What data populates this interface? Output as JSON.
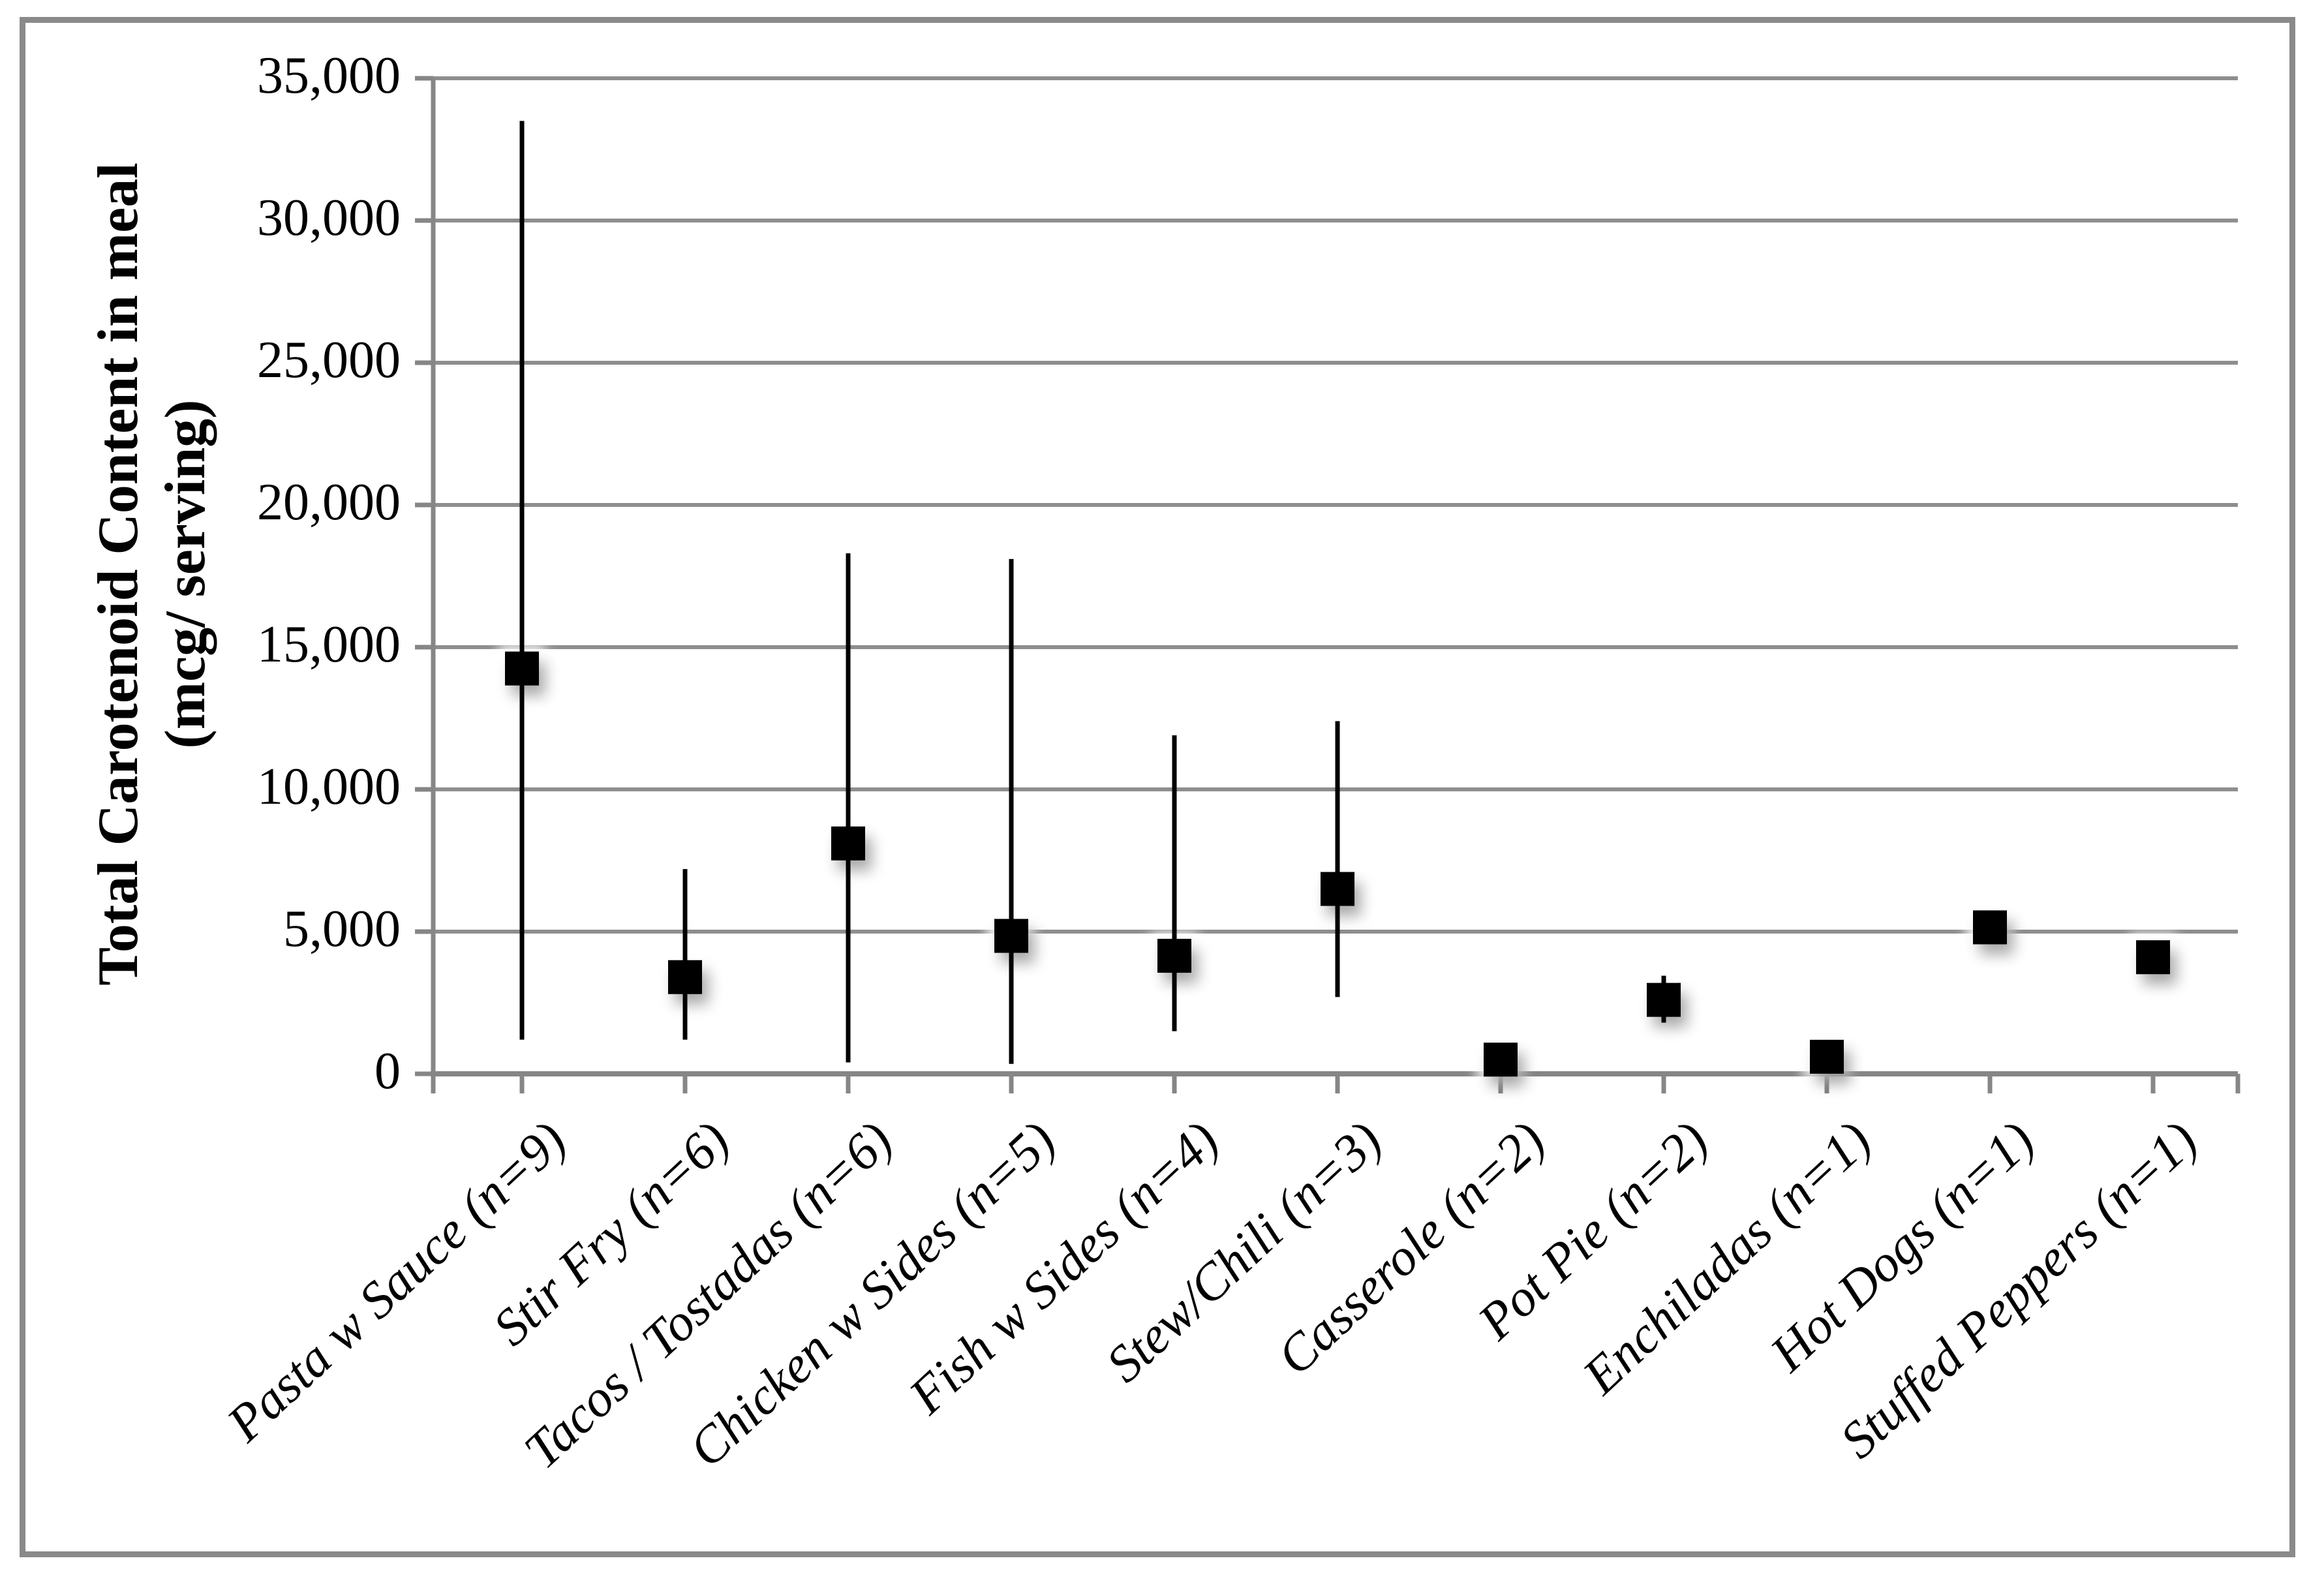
{
  "colors": {
    "background": "#ffffff",
    "border": "#8a8a8a",
    "gridline": "#8e8e8e",
    "axis": "#868686",
    "marker": "#000000",
    "error_bar": "#000000",
    "text": "#000000"
  },
  "chart_data": {
    "type": "scatter",
    "title": "",
    "ylabel_line1": "Total Carotenoid Content in meal",
    "ylabel_line2": "(mcg/ serving)",
    "xlabel": "",
    "ylim": [
      0,
      35000
    ],
    "ytick_interval": 5000,
    "ytick_labels": [
      "0",
      "5,000",
      "10,000",
      "15,000",
      "20,000",
      "25,000",
      "30,000",
      "35,000"
    ],
    "grid": "horizontal",
    "legend_position": "none",
    "marker_style": "filled-black-square",
    "error_bars": "vertical-range-no-caps",
    "categories": [
      "Pasta w Sauce (n=9)",
      "Stir Fry (n=6)",
      "Tacos / Tostadas (n=6)",
      "Chicken w Sides (n=5)",
      "Fish w Sides (n=4)",
      "Stew/Chili (n=3)",
      "Casserole (n=2)",
      "Pot Pie (n=2)",
      "Enchiladas (n=1)",
      "Hot Dogs (n=1)",
      "Stuffed Peppers (n=1)"
    ],
    "points": [
      {
        "label": "Pasta w Sauce (n=9)",
        "value": 14250,
        "low": 1200,
        "high": 33500
      },
      {
        "label": "Stir Fry (n=6)",
        "value": 3400,
        "low": 1200,
        "high": 7200
      },
      {
        "label": "Tacos / Tostadas (n=6)",
        "value": 8100,
        "low": 400,
        "high": 18300
      },
      {
        "label": "Chicken w Sides (n=5)",
        "value": 4850,
        "low": 350,
        "high": 18100
      },
      {
        "label": "Fish w Sides (n=4)",
        "value": 4150,
        "low": 1500,
        "high": 11900
      },
      {
        "label": "Stew/Chili (n=3)",
        "value": 6500,
        "low": 2700,
        "high": 12400
      },
      {
        "label": "Casserole (n=2)",
        "value": 500,
        "low": null,
        "high": null
      },
      {
        "label": "Pot Pie (n=2)",
        "value": 2600,
        "low": 1800,
        "high": 3450
      },
      {
        "label": "Enchiladas (n=1)",
        "value": 600,
        "low": null,
        "high": null
      },
      {
        "label": "Hot Dogs (n=1)",
        "value": 5150,
        "low": null,
        "high": null
      },
      {
        "label": "Stuffed Peppers (n=1)",
        "value": 4100,
        "low": null,
        "high": null
      }
    ]
  }
}
